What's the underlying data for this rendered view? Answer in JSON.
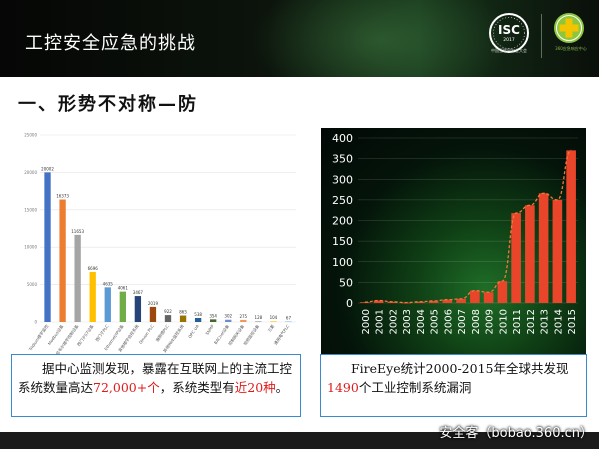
{
  "header": {
    "title": "工控安全应急的挑战",
    "isc_logo_text": "ISC",
    "isc_logo_year": "2017",
    "isc_subtitle": "中国互联网安全大会",
    "cross_subtitle": "360应急响应中心"
  },
  "section": {
    "heading": "一、形势不对称—防"
  },
  "left_text": {
    "before": "据中心监测发现，暴露在互联网上的主流工控系统数量高达",
    "highlight1": "72,000+个",
    "middle": "，系统类型有",
    "highlight2": "近20种",
    "after": "。"
  },
  "right_text": {
    "before": "FireEye统计2000-2015年全球共发现",
    "highlight": "1490",
    "after": "个工业控制系统漏洞"
  },
  "watermark": "安全客（bobao.360.cn）",
  "colors": {
    "accent_red": "#e01a1a",
    "box_border": "#3a8ad0",
    "bar_orange": "#e8452a"
  },
  "chart_data": [
    {
      "type": "bar",
      "categories": [
        "Tridium楼宇监控",
        "Modbus设备",
        "霍尼韦尔楼宇控制设备",
        "西门子S7设备",
        "西门子PLC",
        "Ethernet/IP设备",
        "其他楼宇自控系统",
        "Omron PLC",
        "施耐德PLC",
        "其他Web监控系统",
        "OPC UA",
        "SNMP",
        "BACnet设备",
        "控制网关设备",
        "视频监控设备",
        "三菱",
        "通用电气PLC"
      ],
      "values": [
        20002,
        16373,
        11653,
        6696,
        4635,
        4061,
        3467,
        2019,
        922,
        865,
        538,
        354,
        302,
        275,
        128,
        104,
        67
      ],
      "bar_colors": [
        "#4472c4",
        "#ed7d31",
        "#a5a5a5",
        "#ffc000",
        "#5b9bd5",
        "#70ad47",
        "#264478",
        "#9e480e",
        "#636363",
        "#997300",
        "#255e91",
        "#43682b",
        "#698ed0",
        "#f1975a",
        "#b7b7b7",
        "#ffcd33",
        "#7cafdd"
      ],
      "ylim": [
        0,
        25000
      ],
      "y_ticks": [
        0,
        5000,
        10000,
        15000,
        20000,
        25000
      ],
      "grid": true
    },
    {
      "type": "bar",
      "categories": [
        "2000",
        "2001",
        "2002",
        "2003",
        "2004",
        "2005",
        "2006",
        "2007",
        "2008",
        "2009",
        "2010",
        "2011",
        "2012",
        "2013",
        "2014",
        "2015"
      ],
      "values": [
        2,
        6,
        3,
        1,
        3,
        5,
        8,
        10,
        30,
        26,
        53,
        218,
        237,
        266,
        250,
        370
      ],
      "series_color": "#e8452a",
      "trendline": "dashed",
      "ylim": [
        0,
        400
      ],
      "y_ticks": [
        0,
        50,
        100,
        150,
        200,
        250,
        300,
        350,
        400
      ],
      "grid": true
    }
  ]
}
